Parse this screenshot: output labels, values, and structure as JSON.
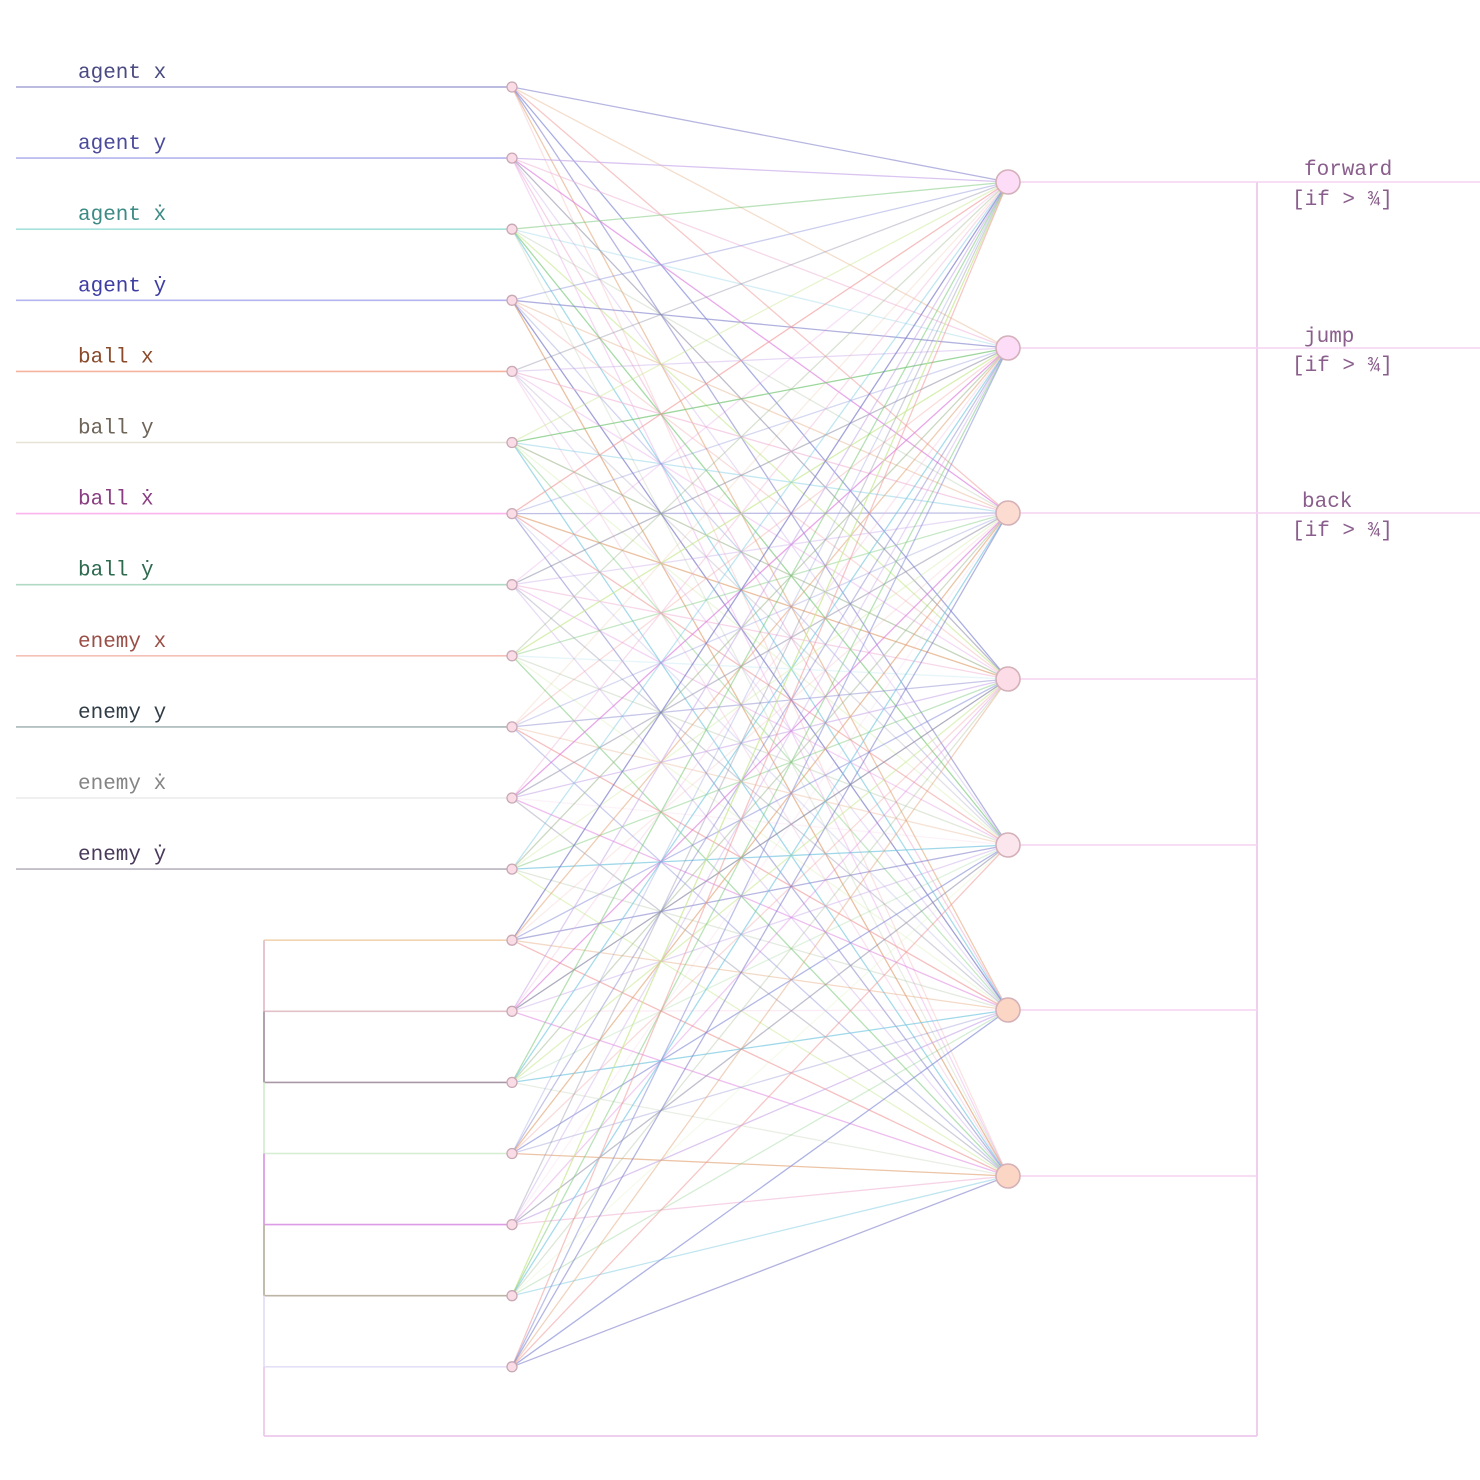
{
  "diagram": {
    "title": "",
    "inputs": [
      {
        "label": "agent x",
        "color": "#4a4a82",
        "line": "#a6a6d6"
      },
      {
        "label": "agent y",
        "color": "#4a4a9a",
        "line": "#b4b4ee"
      },
      {
        "label": "agent ẋ",
        "color": "#3c8a84",
        "line": "#a8e2dc"
      },
      {
        "label": "agent ẏ",
        "color": "#3e3ea2",
        "line": "#b4b4f0"
      },
      {
        "label": "ball x",
        "color": "#8a4a2a",
        "line": "#f4b4a0"
      },
      {
        "label": "ball y",
        "color": "#6e6458",
        "line": "#e6e2d8"
      },
      {
        "label": "ball ẋ",
        "color": "#8a3e82",
        "line": "#fab4ec"
      },
      {
        "label": "ball ẏ",
        "color": "#2e6a4e",
        "line": "#b0dac6"
      },
      {
        "label": "enemy x",
        "color": "#9a4e46",
        "line": "#f6c0b8"
      },
      {
        "label": "enemy y",
        "color": "#303c46",
        "line": "#aab8b8"
      },
      {
        "label": "enemy ẋ",
        "color": "#848484",
        "line": "#ececec"
      },
      {
        "label": "enemy ẏ",
        "color": "#4a3a5a",
        "line": "#b8b4c0"
      }
    ],
    "recurrent_inputs": [
      {
        "color": "#f2d4b0"
      },
      {
        "color": "#e2c0c8"
      },
      {
        "color": "#a898a8"
      },
      {
        "color": "#d4eed0"
      },
      {
        "color": "#dc9ce6"
      },
      {
        "color": "#bcb4a4"
      },
      {
        "color": "#e4e0f8"
      }
    ],
    "hidden_node_fill": "#fadce6",
    "outputs": [
      {
        "fill": "#fcdcf6",
        "label": "forward",
        "threshold": "[if > ¾]"
      },
      {
        "fill": "#fcdcf6",
        "label": "jump",
        "threshold": "[if > ¾]"
      },
      {
        "fill": "#fcdcd0",
        "label": "back",
        "threshold": "[if > ¾]"
      },
      {
        "fill": "#fcdce6",
        "label": "",
        "threshold": ""
      },
      {
        "fill": "#fce6ee",
        "label": "",
        "threshold": ""
      },
      {
        "fill": "#fcd6c4",
        "label": "",
        "threshold": ""
      },
      {
        "fill": "#fcd6c4",
        "label": "",
        "threshold": ""
      }
    ],
    "edge_colors": [
      "#7878c8",
      "#dc78dc",
      "#78c878",
      "#e0a070",
      "#9090a8",
      "#78c8e0",
      "#f09898",
      "#c8a8e8",
      "#a0b890",
      "#8890d8",
      "#f0b8d8",
      "#c8e890"
    ],
    "feedback_color": "#eec8ec"
  }
}
